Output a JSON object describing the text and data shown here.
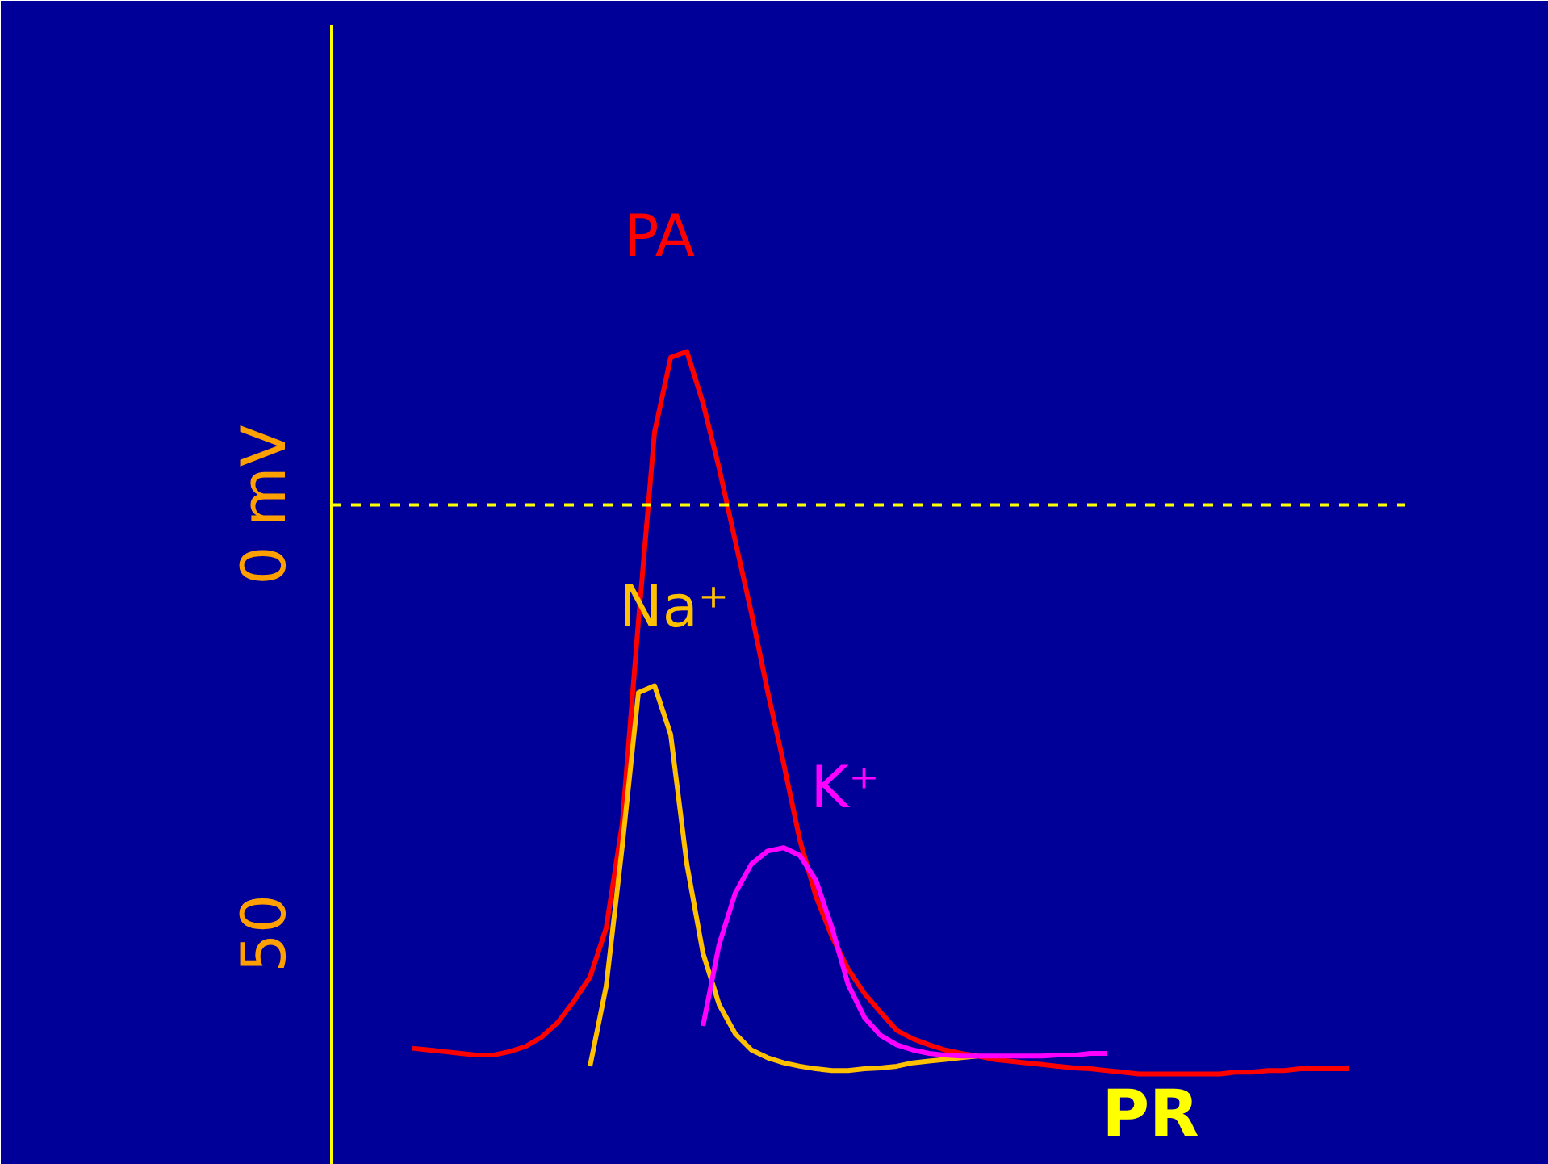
{
  "chart_data": {
    "type": "line",
    "categories": [
      null,
      null,
      null,
      null,
      null,
      null,
      null,
      null,
      null,
      null,
      null,
      null,
      null,
      null,
      null,
      null,
      null,
      null,
      null,
      null,
      null,
      null,
      null,
      null,
      null,
      null,
      null,
      null,
      null,
      null,
      null,
      null,
      null,
      null,
      null,
      null,
      null,
      null,
      null,
      null,
      null,
      null,
      null,
      null,
      null,
      null,
      null,
      null,
      null,
      null,
      null,
      null,
      null,
      null,
      null,
      null,
      null,
      null,
      null
    ],
    "series": [
      {
        "name": "PA",
        "color": "#ff0000",
        "values": [
          -63.4,
          -63.6,
          -63.8,
          -64.0,
          -64.2,
          -64.2,
          -63.8,
          -63.2,
          -62.1,
          -60.4,
          -57.9,
          -55.1,
          -49.4,
          -37.2,
          -13.6,
          8.5,
          17.2,
          17.9,
          11.9,
          4.3,
          -4.2,
          -12.6,
          -21.7,
          -30.2,
          -39.1,
          -45.7,
          -50.4,
          -54.2,
          -57.0,
          -59.2,
          -61.3,
          -62.3,
          -63.0,
          -63.6,
          -64.0,
          -64.3,
          -64.7,
          -64.9,
          -65.1,
          -65.3,
          -65.5,
          -65.7,
          -65.8,
          -66.0,
          -66.2,
          -66.4,
          -66.4,
          -66.4,
          -66.4,
          -66.4,
          -66.4,
          -66.2,
          -66.2,
          -66.0,
          -66.0,
          -65.8,
          -65.8,
          -65.8,
          -65.8
        ]
      },
      {
        "name": "Na⁺",
        "color": "#ffc000",
        "values": [
          null,
          null,
          null,
          null,
          null,
          null,
          null,
          null,
          null,
          null,
          null,
          -65.5,
          -56.2,
          -39.8,
          -21.9,
          -21.1,
          -26.8,
          -41.9,
          -52.3,
          -58.3,
          -61.7,
          -63.6,
          -64.5,
          -65.1,
          -65.5,
          -65.8,
          -66.0,
          -66.0,
          -65.8,
          -65.7,
          -65.5,
          -65.1,
          -64.9,
          -64.7,
          -64.5,
          -64.3,
          null,
          null,
          null,
          null,
          null,
          null,
          null,
          null,
          null,
          null,
          null,
          null,
          null,
          null,
          null,
          null,
          null,
          null,
          null,
          null,
          null,
          null,
          null
        ]
      },
      {
        "name": "K⁺",
        "color": "#ff00ff",
        "values": [
          null,
          null,
          null,
          null,
          null,
          null,
          null,
          null,
          null,
          null,
          null,
          null,
          null,
          null,
          null,
          null,
          null,
          null,
          -60.8,
          -51.3,
          -45.3,
          -41.9,
          -40.4,
          -40.0,
          -40.9,
          -43.8,
          -49.4,
          -56.0,
          -59.8,
          -61.9,
          -63.0,
          -63.6,
          -64.0,
          -64.2,
          -64.3,
          -64.3,
          -64.3,
          -64.3,
          -64.3,
          -64.3,
          -64.2,
          -64.2,
          -64.0,
          -64.0,
          null,
          null,
          null,
          null,
          null,
          null,
          null,
          null,
          null,
          null,
          null,
          null,
          null,
          null,
          null
        ]
      }
    ],
    "ylim": [
      -77,
      56
    ],
    "yticks": [
      {
        "value": 0,
        "label": "0 mV"
      },
      {
        "value": -50,
        "label": "50"
      }
    ],
    "tick_labels": "y",
    "grid": false,
    "ref_lines": [
      {
        "axis": "y",
        "value": 0,
        "label": null,
        "color": "#ffff00",
        "line_style": "dashed"
      }
    ],
    "annotations": [
      "PR"
    ]
  }
}
